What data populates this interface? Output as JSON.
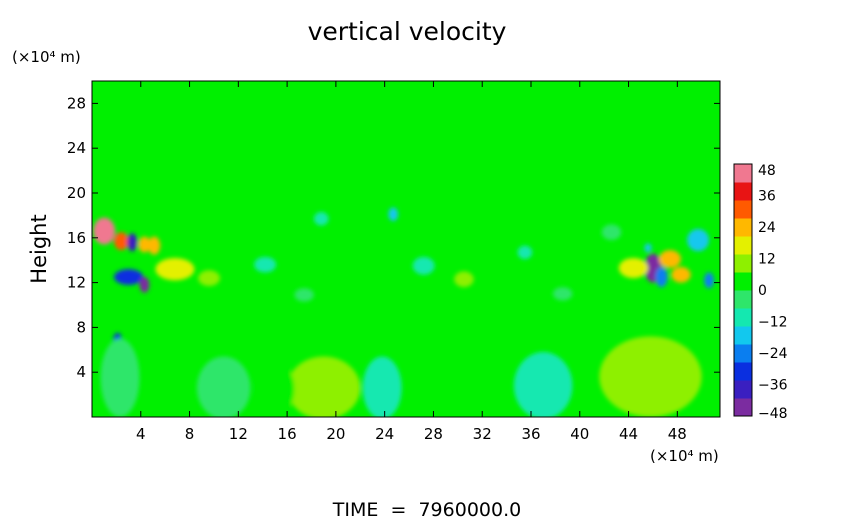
{
  "chart_data": {
    "type": "heatmap",
    "title": "vertical velocity",
    "ylabel": "Height",
    "y_unit": "(×10⁴ m)",
    "x_unit": "(×10⁴ m)",
    "footer": "TIME  =  7960000.0",
    "xlim": [
      0,
      51.5
    ],
    "ylim": [
      0,
      30
    ],
    "x_ticks": [
      4,
      8,
      12,
      16,
      20,
      24,
      28,
      32,
      36,
      40,
      44,
      48
    ],
    "y_ticks": [
      4,
      8,
      12,
      16,
      20,
      24,
      28
    ],
    "colorbar": {
      "min": -48,
      "max": 48,
      "ticks": [
        48,
        36,
        24,
        12,
        0,
        -12,
        -24,
        -36,
        -48
      ],
      "colors": [
        "#7b2ca0",
        "#3a1fc0",
        "#0a2fe0",
        "#0a7ef0",
        "#12c8ee",
        "#14e8b0",
        "#2ee66a",
        "#00f000",
        "#8ef000",
        "#e4f000",
        "#ffb800",
        "#ff5a00",
        "#e81414",
        "#f07890"
      ]
    },
    "features": [
      {
        "x": 1.0,
        "y": 16.6,
        "value": 46,
        "rx": 0.9,
        "ry": 1.2
      },
      {
        "x": 2.4,
        "y": 15.7,
        "value": 30,
        "rx": 0.6,
        "ry": 0.8
      },
      {
        "x": 3.3,
        "y": 15.6,
        "value": -38,
        "rx": 0.4,
        "ry": 0.8
      },
      {
        "x": 4.3,
        "y": 15.4,
        "value": 22,
        "rx": 0.5,
        "ry": 0.7
      },
      {
        "x": 5.1,
        "y": 15.3,
        "value": 26,
        "rx": 0.5,
        "ry": 0.8
      },
      {
        "x": 3.0,
        "y": 12.5,
        "value": -30,
        "rx": 1.2,
        "ry": 0.7
      },
      {
        "x": 4.3,
        "y": 11.8,
        "value": -44,
        "rx": 0.4,
        "ry": 0.7
      },
      {
        "x": 6.8,
        "y": 13.2,
        "value": 18,
        "rx": 1.6,
        "ry": 1.0
      },
      {
        "x": 2.1,
        "y": 6.6,
        "value": -30,
        "rx": 0.4,
        "ry": 0.9
      },
      {
        "x": 46.0,
        "y": 13.3,
        "value": -44,
        "rx": 0.7,
        "ry": 1.3
      },
      {
        "x": 46.7,
        "y": 12.5,
        "value": -26,
        "rx": 0.5,
        "ry": 0.9
      },
      {
        "x": 47.4,
        "y": 14.1,
        "value": 24,
        "rx": 0.9,
        "ry": 0.8
      },
      {
        "x": 48.3,
        "y": 12.7,
        "value": 22,
        "rx": 0.8,
        "ry": 0.7
      },
      {
        "x": 44.4,
        "y": 13.3,
        "value": 16,
        "rx": 1.2,
        "ry": 0.9
      },
      {
        "x": 49.7,
        "y": 15.8,
        "value": -14,
        "rx": 0.9,
        "ry": 1.0
      },
      {
        "x": 50.6,
        "y": 12.2,
        "value": -22,
        "rx": 0.4,
        "ry": 0.7
      },
      {
        "x": 45.6,
        "y": 15.1,
        "value": -20,
        "rx": 0.3,
        "ry": 0.4
      },
      {
        "x": 19.0,
        "y": 2.6,
        "value": 9,
        "rx": 3.0,
        "ry": 2.8
      },
      {
        "x": 23.8,
        "y": 2.6,
        "value": -9,
        "rx": 1.6,
        "ry": 2.8
      },
      {
        "x": 28.2,
        "y": 2.4,
        "value": 6,
        "rx": 1.6,
        "ry": 2.4
      },
      {
        "x": 10.8,
        "y": 2.6,
        "value": -5,
        "rx": 2.2,
        "ry": 2.8
      },
      {
        "x": 37.0,
        "y": 2.8,
        "value": -8,
        "rx": 2.4,
        "ry": 3.0
      },
      {
        "x": 45.8,
        "y": 3.6,
        "value": 7,
        "rx": 4.2,
        "ry": 3.6
      },
      {
        "x": 2.3,
        "y": 3.5,
        "value": -6,
        "rx": 1.6,
        "ry": 3.5
      },
      {
        "x": 15.0,
        "y": 2.5,
        "value": 4,
        "rx": 1.6,
        "ry": 2.5
      },
      {
        "x": 18.8,
        "y": 17.7,
        "value": -10,
        "rx": 0.6,
        "ry": 0.6
      },
      {
        "x": 24.7,
        "y": 18.1,
        "value": -14,
        "rx": 0.4,
        "ry": 0.6
      },
      {
        "x": 27.2,
        "y": 13.5,
        "value": -8,
        "rx": 0.9,
        "ry": 0.8
      },
      {
        "x": 30.5,
        "y": 12.3,
        "value": 7,
        "rx": 0.8,
        "ry": 0.7
      },
      {
        "x": 35.5,
        "y": 14.7,
        "value": -9,
        "rx": 0.6,
        "ry": 0.6
      },
      {
        "x": 22.0,
        "y": 13.1,
        "value": 6,
        "rx": 1.0,
        "ry": 0.7
      },
      {
        "x": 14.2,
        "y": 13.6,
        "value": -7,
        "rx": 0.9,
        "ry": 0.7
      },
      {
        "x": 9.6,
        "y": 12.4,
        "value": 8,
        "rx": 0.9,
        "ry": 0.7
      },
      {
        "x": 40.4,
        "y": 12.9,
        "value": 6,
        "rx": 0.8,
        "ry": 0.7
      },
      {
        "x": 33.0,
        "y": 16.9,
        "value": 5,
        "rx": 0.8,
        "ry": 0.7
      },
      {
        "x": 12.6,
        "y": 17.3,
        "value": 5,
        "rx": 1.0,
        "ry": 0.8
      },
      {
        "x": 42.6,
        "y": 16.5,
        "value": -5,
        "rx": 0.8,
        "ry": 0.7
      },
      {
        "x": 38.6,
        "y": 11.0,
        "value": -6,
        "rx": 0.8,
        "ry": 0.6
      },
      {
        "x": 17.4,
        "y": 10.9,
        "value": -5,
        "rx": 0.8,
        "ry": 0.6
      }
    ]
  }
}
